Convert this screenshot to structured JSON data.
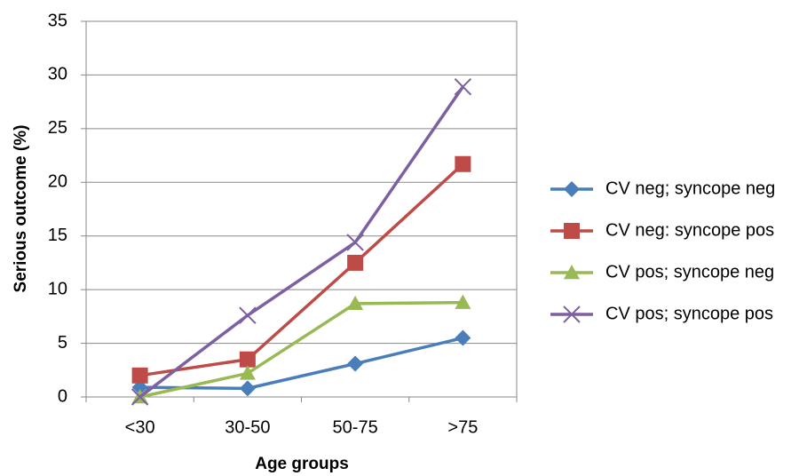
{
  "chart_data": {
    "type": "line",
    "x_label": "Age groups",
    "y_label": "Serious outcome (%)",
    "categories": [
      "<30",
      "30-50",
      "50-75",
      ">75"
    ],
    "series": [
      {
        "name": "CV neg; syncope neg",
        "color": "#4a7ebb",
        "marker": "diamond",
        "values": [
          0.9,
          0.8,
          3.1,
          5.5
        ]
      },
      {
        "name": "CV neg: syncope pos",
        "color": "#be4b48",
        "marker": "square",
        "values": [
          2.0,
          3.5,
          12.5,
          21.7
        ]
      },
      {
        "name": "CV pos; syncope neg",
        "color": "#98b954",
        "marker": "triangle",
        "values": [
          0,
          2.2,
          8.7,
          8.8
        ]
      },
      {
        "name": "CV pos; syncope pos",
        "color": "#7d60a0",
        "marker": "x",
        "values": [
          0,
          7.6,
          14.4,
          28.9
        ]
      }
    ],
    "ylim": [
      0,
      35
    ],
    "yticks": [
      0,
      5,
      10,
      15,
      20,
      25,
      30,
      35
    ],
    "grid": true,
    "legend": "right"
  }
}
